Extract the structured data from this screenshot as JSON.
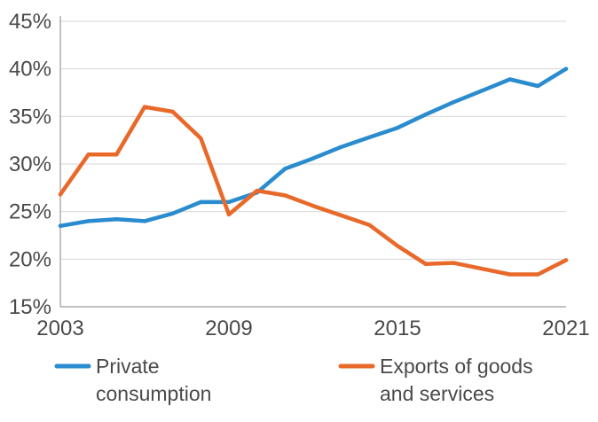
{
  "chart_data": {
    "type": "line",
    "title": "",
    "xlabel": "",
    "ylabel": "",
    "x": [
      2003,
      2004,
      2005,
      2006,
      2007,
      2008,
      2009,
      2010,
      2011,
      2012,
      2013,
      2014,
      2015,
      2016,
      2017,
      2018,
      2019,
      2020,
      2021
    ],
    "xticks": [
      "2003",
      "2009",
      "2015",
      "2021"
    ],
    "xtick_values": [
      2003,
      2009,
      2015,
      2021
    ],
    "yticks": [
      "15%",
      "20%",
      "25%",
      "30%",
      "35%",
      "40%",
      "45%"
    ],
    "ytick_values": [
      15,
      20,
      25,
      30,
      35,
      40,
      45
    ],
    "ylim": [
      15,
      45
    ],
    "xlim": [
      2003,
      2021
    ],
    "grid": true,
    "legend_position": "bottom",
    "series": [
      {
        "name": "Private consumption",
        "legend_lines": [
          "Private",
          "consumption"
        ],
        "color": "#2a8ccf",
        "values": [
          23.5,
          24.0,
          24.2,
          24.0,
          24.8,
          26.0,
          26.0,
          27.0,
          29.5,
          30.6,
          31.8,
          32.8,
          33.8,
          35.2,
          36.5,
          37.7,
          38.9,
          38.2,
          40.0
        ]
      },
      {
        "name": "Exports of goods and services",
        "legend_lines": [
          "Exports of goods",
          "and services"
        ],
        "color": "#e8692a",
        "values": [
          26.8,
          31.0,
          31.0,
          36.0,
          35.5,
          32.7,
          24.7,
          27.2,
          26.7,
          25.6,
          24.6,
          23.6,
          21.4,
          19.5,
          19.6,
          19.0,
          18.4,
          18.4,
          19.9
        ]
      }
    ]
  }
}
